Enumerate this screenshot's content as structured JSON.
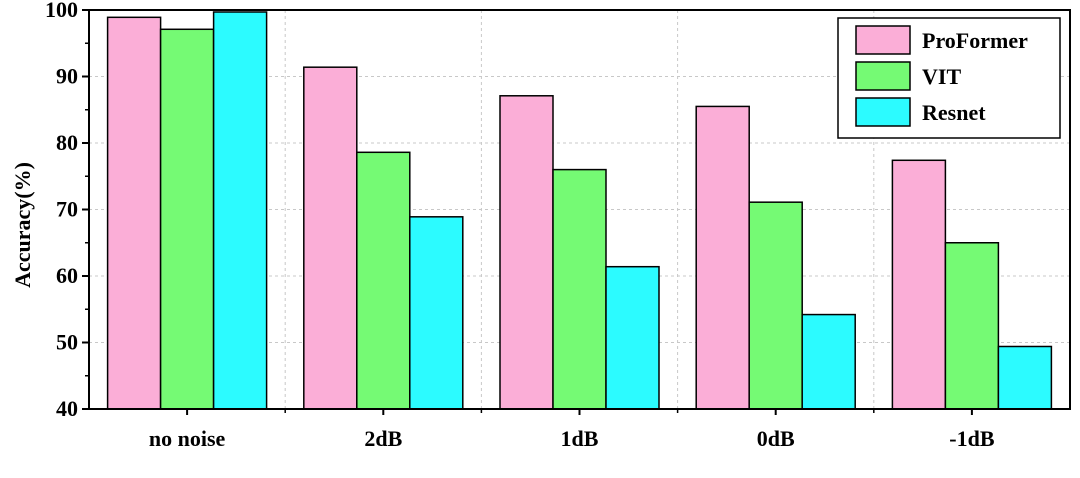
{
  "chart_data": {
    "type": "bar",
    "title": "",
    "xlabel": "",
    "ylabel": "Accuracy(%)",
    "ylim": [
      40,
      100
    ],
    "yticks": [
      "40",
      "50",
      "60",
      "70",
      "80",
      "90",
      "100"
    ],
    "categories": [
      "no noise",
      "2dB",
      "1dB",
      "0dB",
      "-1dB"
    ],
    "series": [
      {
        "name": "ProFormer",
        "color": "#FBAED7",
        "values": [
          98.9,
          91.4,
          87.1,
          85.5,
          77.4
        ]
      },
      {
        "name": "VIT",
        "color": "#75FA74",
        "values": [
          97.1,
          78.6,
          76.0,
          71.1,
          65.0
        ]
      },
      {
        "name": "Resnet",
        "color": "#2CFBFF",
        "values": [
          99.7,
          68.9,
          61.4,
          54.2,
          49.4
        ]
      }
    ],
    "grid": true,
    "legend_position": "top-right"
  }
}
